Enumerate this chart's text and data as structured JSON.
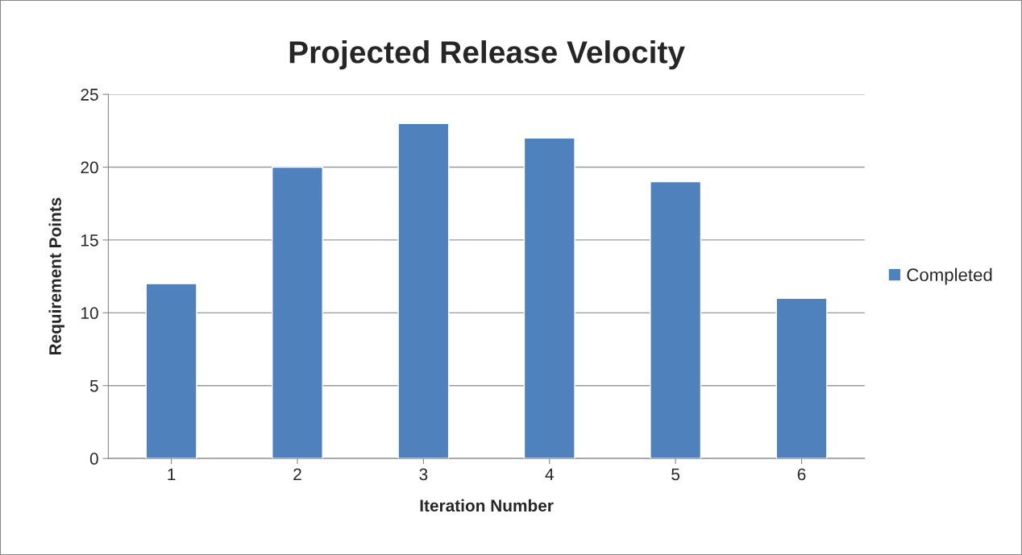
{
  "chart_data": {
    "type": "bar",
    "title": "Projected Release Velocity",
    "xlabel": "Iteration Number",
    "ylabel": "Requirement Points",
    "categories": [
      "1",
      "2",
      "3",
      "4",
      "5",
      "6"
    ],
    "series": [
      {
        "name": "Completed",
        "color": "#4f81bd",
        "values": [
          12,
          20,
          23,
          22,
          19,
          11
        ]
      }
    ],
    "ylim": [
      0,
      25
    ],
    "yticks": [
      0,
      5,
      10,
      15,
      20,
      25
    ],
    "grid": "y",
    "legend": "right"
  }
}
